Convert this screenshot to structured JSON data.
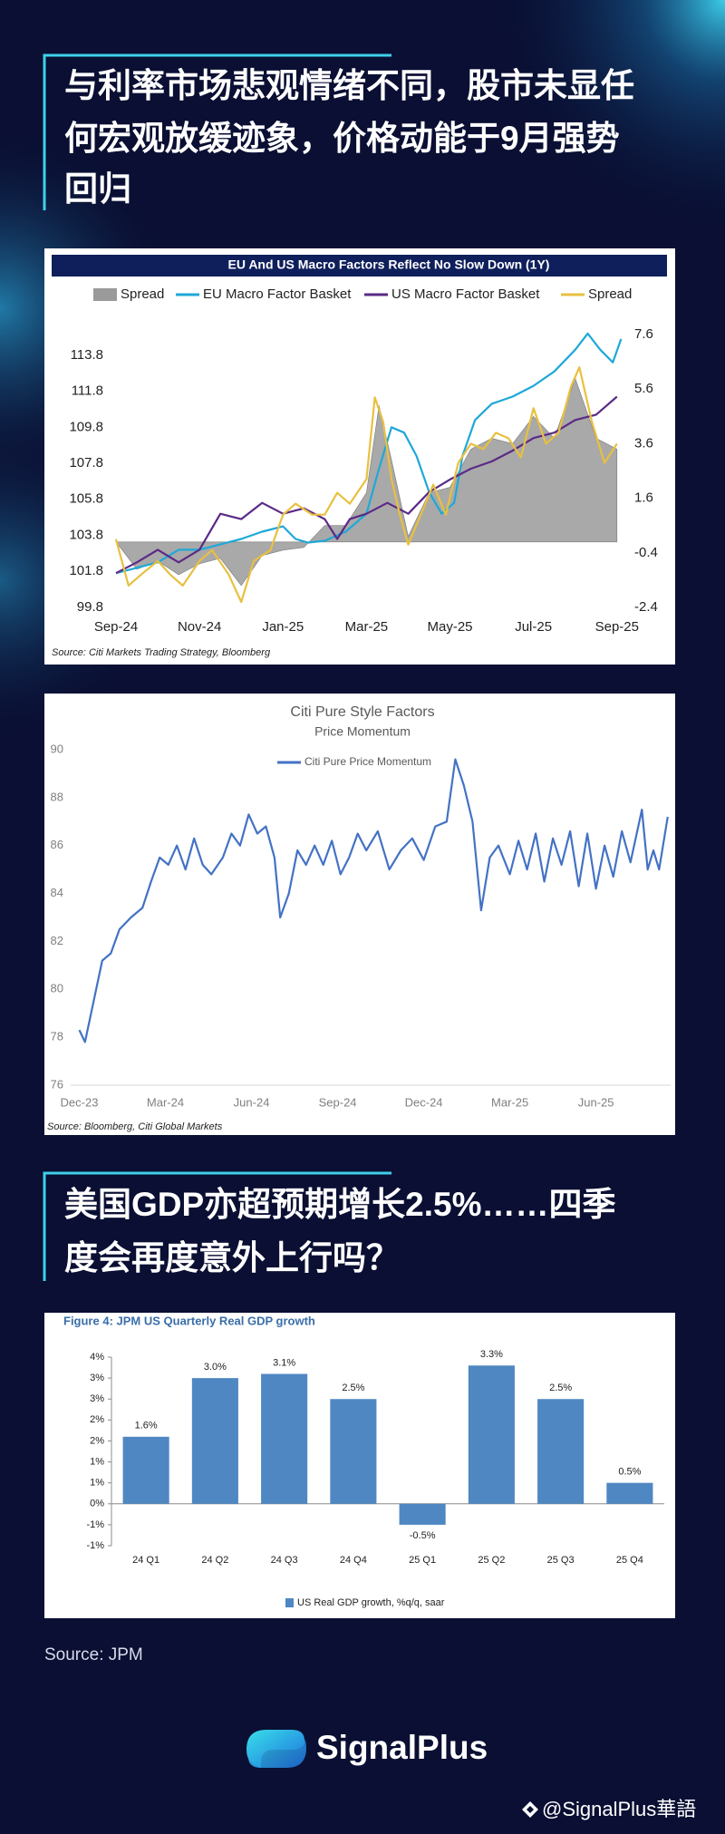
{
  "header": {
    "lines": [
      "与利率市场悲观情绪不同，股市未显任",
      "何宏观放缓迹象，价格动能于9月强势",
      "回归"
    ]
  },
  "chart_data": [
    {
      "type": "line",
      "title": "EU And US Macro Factors Reflect No Slow Down (1Y)",
      "source": "Source: Citi Markets Trading Strategy, Bloomberg",
      "xlim": [
        0,
        12.2
      ],
      "xticks": [
        {
          "value": 0,
          "label": "Sep-24"
        },
        {
          "value": 2,
          "label": "Nov-24"
        },
        {
          "value": 4,
          "label": "Jan-25"
        },
        {
          "value": 6,
          "label": "Mar-25"
        },
        {
          "value": 8,
          "label": "May-25"
        },
        {
          "value": 10,
          "label": "Jul-25"
        },
        {
          "value": 12,
          "label": "Sep-25"
        }
      ],
      "ylim": [
        99.8,
        115.4
      ],
      "yticks": [
        99.8,
        101.8,
        103.8,
        105.8,
        107.8,
        109.8,
        111.8,
        113.8
      ],
      "y2lim": [
        -2.4,
        7.9
      ],
      "y2ticks": [
        -2.4,
        -0.4,
        1.6,
        3.6,
        5.6,
        7.6
      ],
      "grid": false,
      "series": [
        {
          "name": "Spread",
          "type": "area",
          "axis": "y2",
          "color": "#9a9a9a",
          "x": [
            0,
            0.5,
            1,
            1.5,
            2,
            2.5,
            3,
            3.5,
            4,
            4.5,
            5,
            5.5,
            6,
            6.3,
            6.6,
            7,
            7.5,
            8,
            8.5,
            9,
            9.5,
            10,
            10.5,
            11,
            11.5,
            12
          ],
          "values": [
            0,
            -1.0,
            -0.7,
            -1.2,
            -0.8,
            -0.6,
            -1.6,
            -0.5,
            -0.3,
            -0.2,
            0.6,
            0.6,
            1.8,
            5.0,
            3.0,
            0.2,
            1.8,
            2.0,
            3.4,
            3.8,
            3.6,
            4.6,
            3.8,
            6.0,
            3.8,
            3.4
          ]
        },
        {
          "name": "EU Macro Factor Basket",
          "type": "line",
          "axis": "y",
          "color": "#1fa8d8",
          "x": [
            0,
            0.5,
            1,
            1.5,
            2,
            2.5,
            3,
            3.5,
            4,
            4.3,
            4.6,
            5,
            5.5,
            6,
            6.3,
            6.6,
            6.9,
            7.2,
            7.5,
            7.8,
            8.1,
            8.3,
            8.6,
            9,
            9.5,
            10,
            10.5,
            11,
            11.3,
            11.6,
            11.9,
            12.1
          ],
          "values": [
            101.7,
            102.0,
            102.3,
            103.0,
            103.0,
            103.3,
            103.6,
            104.0,
            104.3,
            103.6,
            103.4,
            103.5,
            104.0,
            105.0,
            107.5,
            109.8,
            109.5,
            108.2,
            106.2,
            105.0,
            105.6,
            108.2,
            110.2,
            111.1,
            111.5,
            112.1,
            112.9,
            114.1,
            115.0,
            114.1,
            113.4,
            114.7
          ]
        },
        {
          "name": "US Macro Factor Basket",
          "type": "line",
          "axis": "y",
          "color": "#5b2a86",
          "x": [
            0,
            0.5,
            1,
            1.5,
            2,
            2.5,
            3,
            3.5,
            4,
            4.5,
            5,
            5.3,
            5.6,
            6,
            6.5,
            7,
            7.5,
            8,
            8.5,
            9,
            9.5,
            10,
            10.5,
            11,
            11.5,
            12
          ],
          "values": [
            101.7,
            102.3,
            103.0,
            102.3,
            103.0,
            105.0,
            104.7,
            105.6,
            105.0,
            105.3,
            104.7,
            103.6,
            104.7,
            105.0,
            105.6,
            105.0,
            106.2,
            106.9,
            107.5,
            107.9,
            108.5,
            109.2,
            109.5,
            110.2,
            110.5,
            111.5
          ]
        },
        {
          "name": "Spread",
          "type": "line",
          "axis": "y2",
          "color": "#e8c040",
          "x": [
            0,
            0.3,
            0.6,
            1,
            1.3,
            1.6,
            2,
            2.3,
            2.7,
            3,
            3.3,
            3.7,
            4,
            4.3,
            4.7,
            5,
            5.3,
            5.6,
            6,
            6.2,
            6.4,
            6.6,
            6.8,
            7,
            7.3,
            7.6,
            7.9,
            8.2,
            8.5,
            8.8,
            9.1,
            9.4,
            9.7,
            10,
            10.3,
            10.6,
            10.9,
            11.1,
            11.4,
            11.7,
            12
          ],
          "values": [
            0.1,
            -1.6,
            -1.2,
            -0.7,
            -1.2,
            -1.6,
            -0.7,
            -0.3,
            -1.2,
            -2.2,
            -0.7,
            -0.3,
            1.0,
            1.4,
            1.0,
            1.0,
            1.8,
            1.4,
            2.3,
            5.3,
            4.4,
            2.3,
            1.0,
            -0.1,
            1.0,
            2.1,
            1.0,
            2.9,
            3.6,
            3.4,
            4.0,
            3.8,
            3.1,
            4.9,
            3.6,
            4.0,
            5.7,
            6.4,
            4.4,
            2.9,
            3.6
          ]
        }
      ]
    },
    {
      "type": "line",
      "title": "Citi Pure Style Factors",
      "subtitle": "Price Momentum",
      "source": "Source: Bloomberg, Citi Global Markets",
      "xlim": [
        -0.3,
        20.6
      ],
      "xticks": [
        {
          "value": 0,
          "label": "Dec-23"
        },
        {
          "value": 3,
          "label": "Mar-24"
        },
        {
          "value": 6,
          "label": "Jun-24"
        },
        {
          "value": 9,
          "label": "Sep-24"
        },
        {
          "value": 12,
          "label": "Dec-24"
        },
        {
          "value": 15,
          "label": "Mar-25"
        },
        {
          "value": 18,
          "label": "Jun-25"
        }
      ],
      "ylim": [
        76,
        90
      ],
      "yticks": [
        76,
        78,
        80,
        82,
        84,
        86,
        88,
        90
      ],
      "grid": false,
      "series": [
        {
          "name": "Citi Pure Price Momentum",
          "type": "line",
          "color": "#4472c4",
          "x": [
            0,
            0.2,
            0.5,
            0.8,
            1.1,
            1.4,
            1.8,
            2.2,
            2.5,
            2.8,
            3.1,
            3.4,
            3.7,
            4.0,
            4.3,
            4.6,
            5.0,
            5.3,
            5.6,
            5.9,
            6.2,
            6.5,
            6.8,
            7.0,
            7.3,
            7.6,
            7.9,
            8.2,
            8.5,
            8.8,
            9.1,
            9.4,
            9.7,
            10.0,
            10.4,
            10.8,
            11.2,
            11.6,
            12.0,
            12.4,
            12.8,
            13.1,
            13.4,
            13.7,
            14.0,
            14.3,
            14.6,
            15.0,
            15.3,
            15.6,
            15.9,
            16.2,
            16.5,
            16.8,
            17.1,
            17.4,
            17.7,
            18.0,
            18.3,
            18.6,
            18.9,
            19.2,
            19.6,
            19.8,
            20.0,
            20.2,
            20.5
          ],
          "values": [
            78.3,
            77.8,
            79.5,
            81.2,
            81.5,
            82.5,
            83.0,
            83.4,
            84.5,
            85.5,
            85.2,
            86.0,
            85.0,
            86.3,
            85.2,
            84.8,
            85.5,
            86.5,
            86.0,
            87.3,
            86.5,
            86.8,
            85.5,
            83.0,
            84.0,
            85.8,
            85.2,
            86.0,
            85.2,
            86.2,
            84.8,
            85.5,
            86.5,
            85.8,
            86.6,
            85.0,
            85.8,
            86.3,
            85.4,
            86.8,
            87.0,
            89.6,
            88.5,
            87.0,
            83.3,
            85.5,
            86.0,
            84.8,
            86.2,
            85.0,
            86.5,
            84.5,
            86.3,
            85.2,
            86.6,
            84.3,
            86.5,
            84.2,
            86.0,
            84.7,
            86.6,
            85.3,
            87.5,
            85.0,
            85.8,
            85.0,
            87.2
          ]
        }
      ]
    },
    {
      "type": "bar",
      "title": "Figure 4: JPM US Quarterly Real GDP growth",
      "categories": [
        "24 Q1",
        "24 Q2",
        "24 Q3",
        "24 Q4",
        "25 Q1",
        "25 Q2",
        "25 Q3",
        "25 Q4"
      ],
      "series": [
        {
          "name": "US Real GDP growth, %q/q, saar",
          "color": "#4f87c2",
          "values": [
            1.6,
            3.0,
            3.1,
            2.5,
            -0.5,
            3.3,
            2.5,
            0.5
          ],
          "value_labels": [
            "1.6%",
            "3.0%",
            "3.1%",
            "2.5%",
            "-0.5%",
            "3.3%",
            "2.5%",
            "0.5%"
          ]
        }
      ],
      "ylim": [
        -1,
        3.5
      ],
      "yticks": [
        {
          "value": 3.5,
          "label": "4%"
        },
        {
          "value": 3.0,
          "label": "3%"
        },
        {
          "value": 2.5,
          "label": "3%"
        },
        {
          "value": 2.0,
          "label": "2%"
        },
        {
          "value": 1.5,
          "label": "2%"
        },
        {
          "value": 1.0,
          "label": "1%"
        },
        {
          "value": 0.5,
          "label": "1%"
        },
        {
          "value": 0,
          "label": "0%"
        },
        {
          "value": -0.5,
          "label": "-1%"
        },
        {
          "value": -1.0,
          "label": "-1%"
        }
      ],
      "grid": false
    }
  ],
  "section2": {
    "lines": [
      "美国GDP亦超预期增长2.5%……四季",
      "度会再度意外上行吗？"
    ]
  },
  "source": "Source: JPM",
  "footer": {
    "brand": "SignalPlus",
    "watermark": "@SignalPlus華語"
  }
}
